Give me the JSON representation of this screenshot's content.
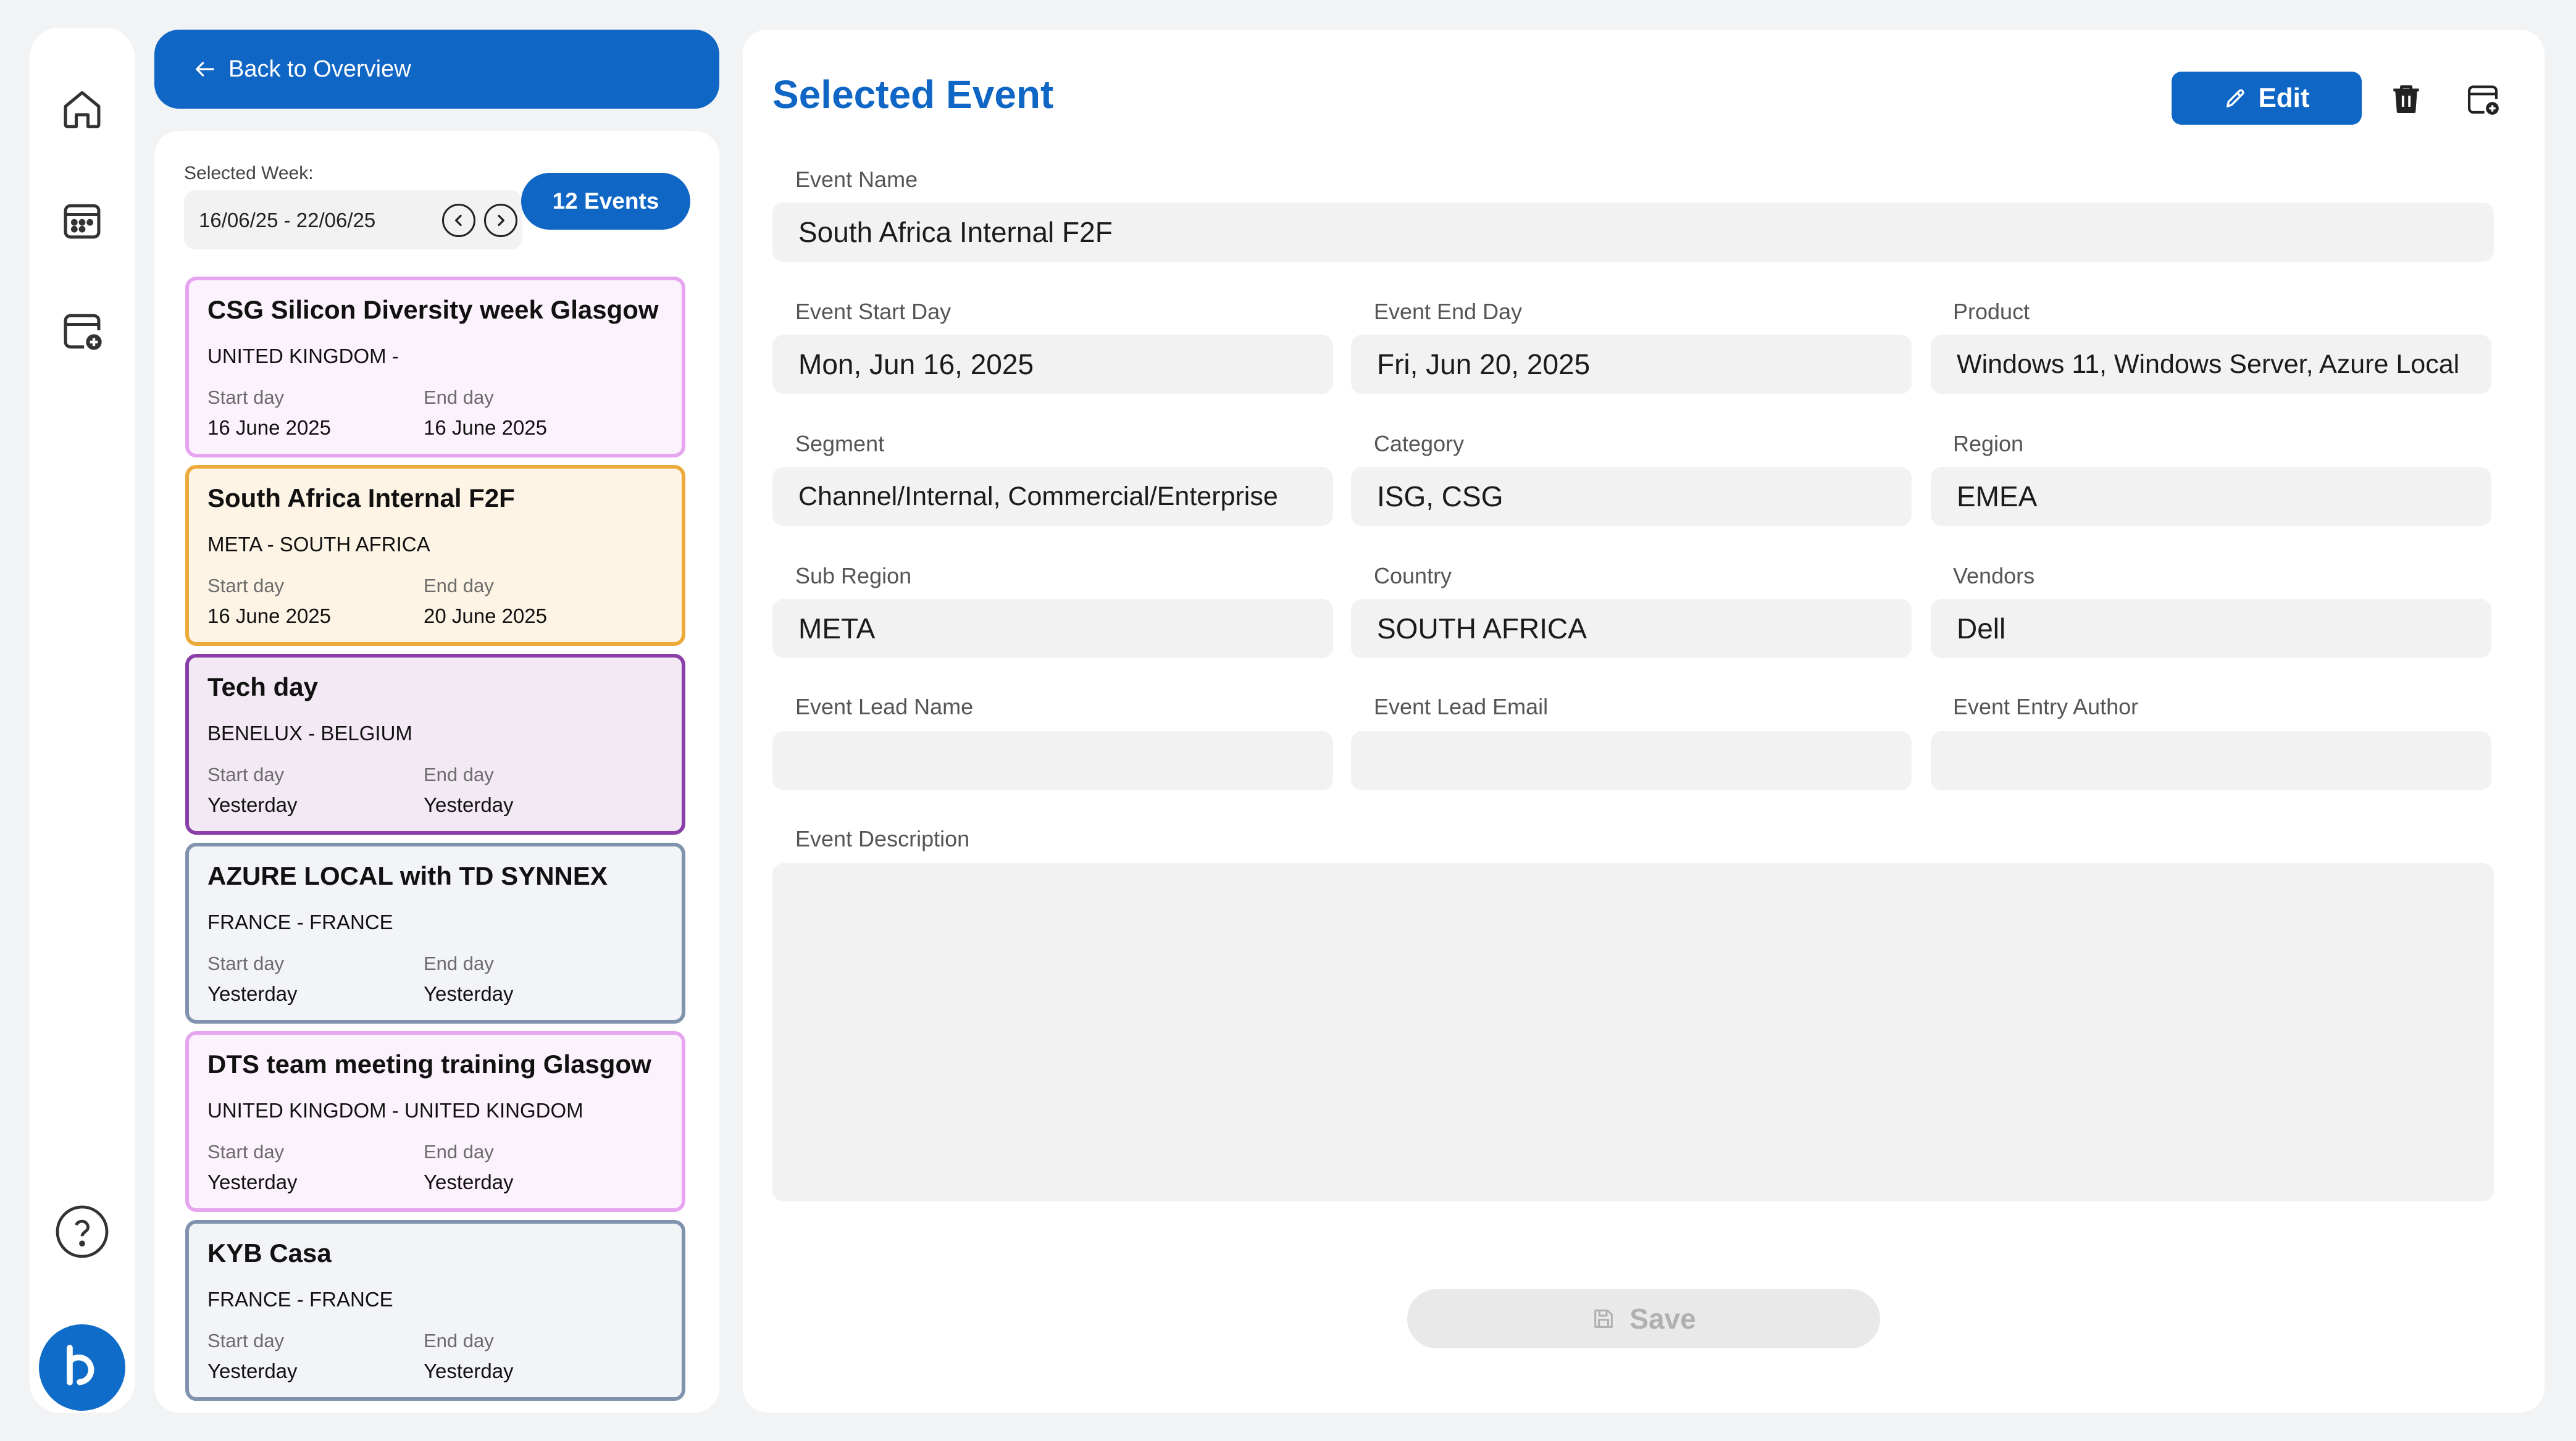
{
  "nav": {
    "items": [
      {
        "name": "home",
        "icon": "home-icon"
      },
      {
        "name": "calendar",
        "icon": "calendar-icon"
      },
      {
        "name": "add-event",
        "icon": "calendar-add-icon"
      }
    ],
    "help_icon": "help-icon",
    "logo_icon": "brand-logo-icon"
  },
  "back_button": {
    "label": "Back to Overview",
    "icon": "arrow-left-icon"
  },
  "week": {
    "label": "Selected Week:",
    "range": "16/06/25 - 22/06/25",
    "count_label": "12 Events"
  },
  "events": [
    {
      "title": "CSG Silicon Diversity week Glasgow",
      "location": "UNITED KINGDOM -",
      "start_label": "Start day",
      "start": "16 June 2025",
      "end_label": "End day",
      "end": "16 June 2025",
      "border": "#e6a6ef",
      "fill": "#fcf2fd"
    },
    {
      "title": "South Africa Internal F2F",
      "location": "META - SOUTH AFRICA",
      "start_label": "Start day",
      "start": "16 June 2025",
      "end_label": "End day",
      "end": "20 June 2025",
      "border": "#ecaa3a",
      "fill": "#fdf4e6"
    },
    {
      "title": "Tech day",
      "location": "BENELUX - BELGIUM",
      "start_label": "Start day",
      "start": "Yesterday",
      "end_label": "End day",
      "end": "Yesterday",
      "border": "#8a3fa8",
      "fill": "#f3e9f5"
    },
    {
      "title": "AZURE LOCAL with TD SYNNEX",
      "location": "FRANCE - FRANCE",
      "start_label": "Start day",
      "start": "Yesterday",
      "end_label": "End day",
      "end": "Yesterday",
      "border": "#7f93ad",
      "fill": "#f2f4f8"
    },
    {
      "title": "DTS team meeting training Glasgow",
      "location": "UNITED KINGDOM - UNITED KINGDOM",
      "start_label": "Start day",
      "start": "Yesterday",
      "end_label": "End day",
      "end": "Yesterday",
      "border": "#e6a6ef",
      "fill": "#fcf2fd"
    },
    {
      "title": "KYB Casa",
      "location": "FRANCE - FRANCE",
      "start_label": "Start day",
      "start": "Yesterday",
      "end_label": "End day",
      "end": "Yesterday",
      "border": "#7f93ad",
      "fill": "#f2f4f8"
    }
  ],
  "detail": {
    "title": "Selected Event",
    "edit_label": "Edit",
    "edit_icon": "pencil-icon",
    "delete_icon": "trash-icon",
    "add_icon": "calendar-add-icon",
    "event_name": {
      "label": "Event Name",
      "value": "South Africa Internal F2F"
    },
    "fields": [
      {
        "key": "start-day",
        "label": "Event Start Day",
        "value": "Mon, Jun 16, 2025"
      },
      {
        "key": "end-day",
        "label": "Event End Day",
        "value": "Fri, Jun 20, 2025"
      },
      {
        "key": "product",
        "label": "Product",
        "value": "Windows 11, Windows Server, Azure Local"
      },
      {
        "key": "segment",
        "label": "Segment",
        "value": "Channel/Internal, Commercial/Enterprise"
      },
      {
        "key": "category",
        "label": "Category",
        "value": "ISG, CSG"
      },
      {
        "key": "region",
        "label": "Region",
        "value": "EMEA"
      },
      {
        "key": "sub-region",
        "label": "Sub Region",
        "value": "META"
      },
      {
        "key": "country",
        "label": "Country",
        "value": "SOUTH AFRICA"
      },
      {
        "key": "vendors",
        "label": "Vendors",
        "value": "Dell"
      },
      {
        "key": "lead-name",
        "label": "Event Lead Name",
        "value": ""
      },
      {
        "key": "lead-email",
        "label": "Event Lead Email",
        "value": ""
      },
      {
        "key": "entry-author",
        "label": "Event Entry Author",
        "value": ""
      }
    ],
    "description": {
      "label": "Event Description",
      "value": ""
    },
    "save_label": "Save",
    "save_icon": "floppy-disk-icon"
  },
  "colors": {
    "primary": "#0f66c5",
    "title": "#0f66c5",
    "field_bg": "#f2f2f2"
  }
}
